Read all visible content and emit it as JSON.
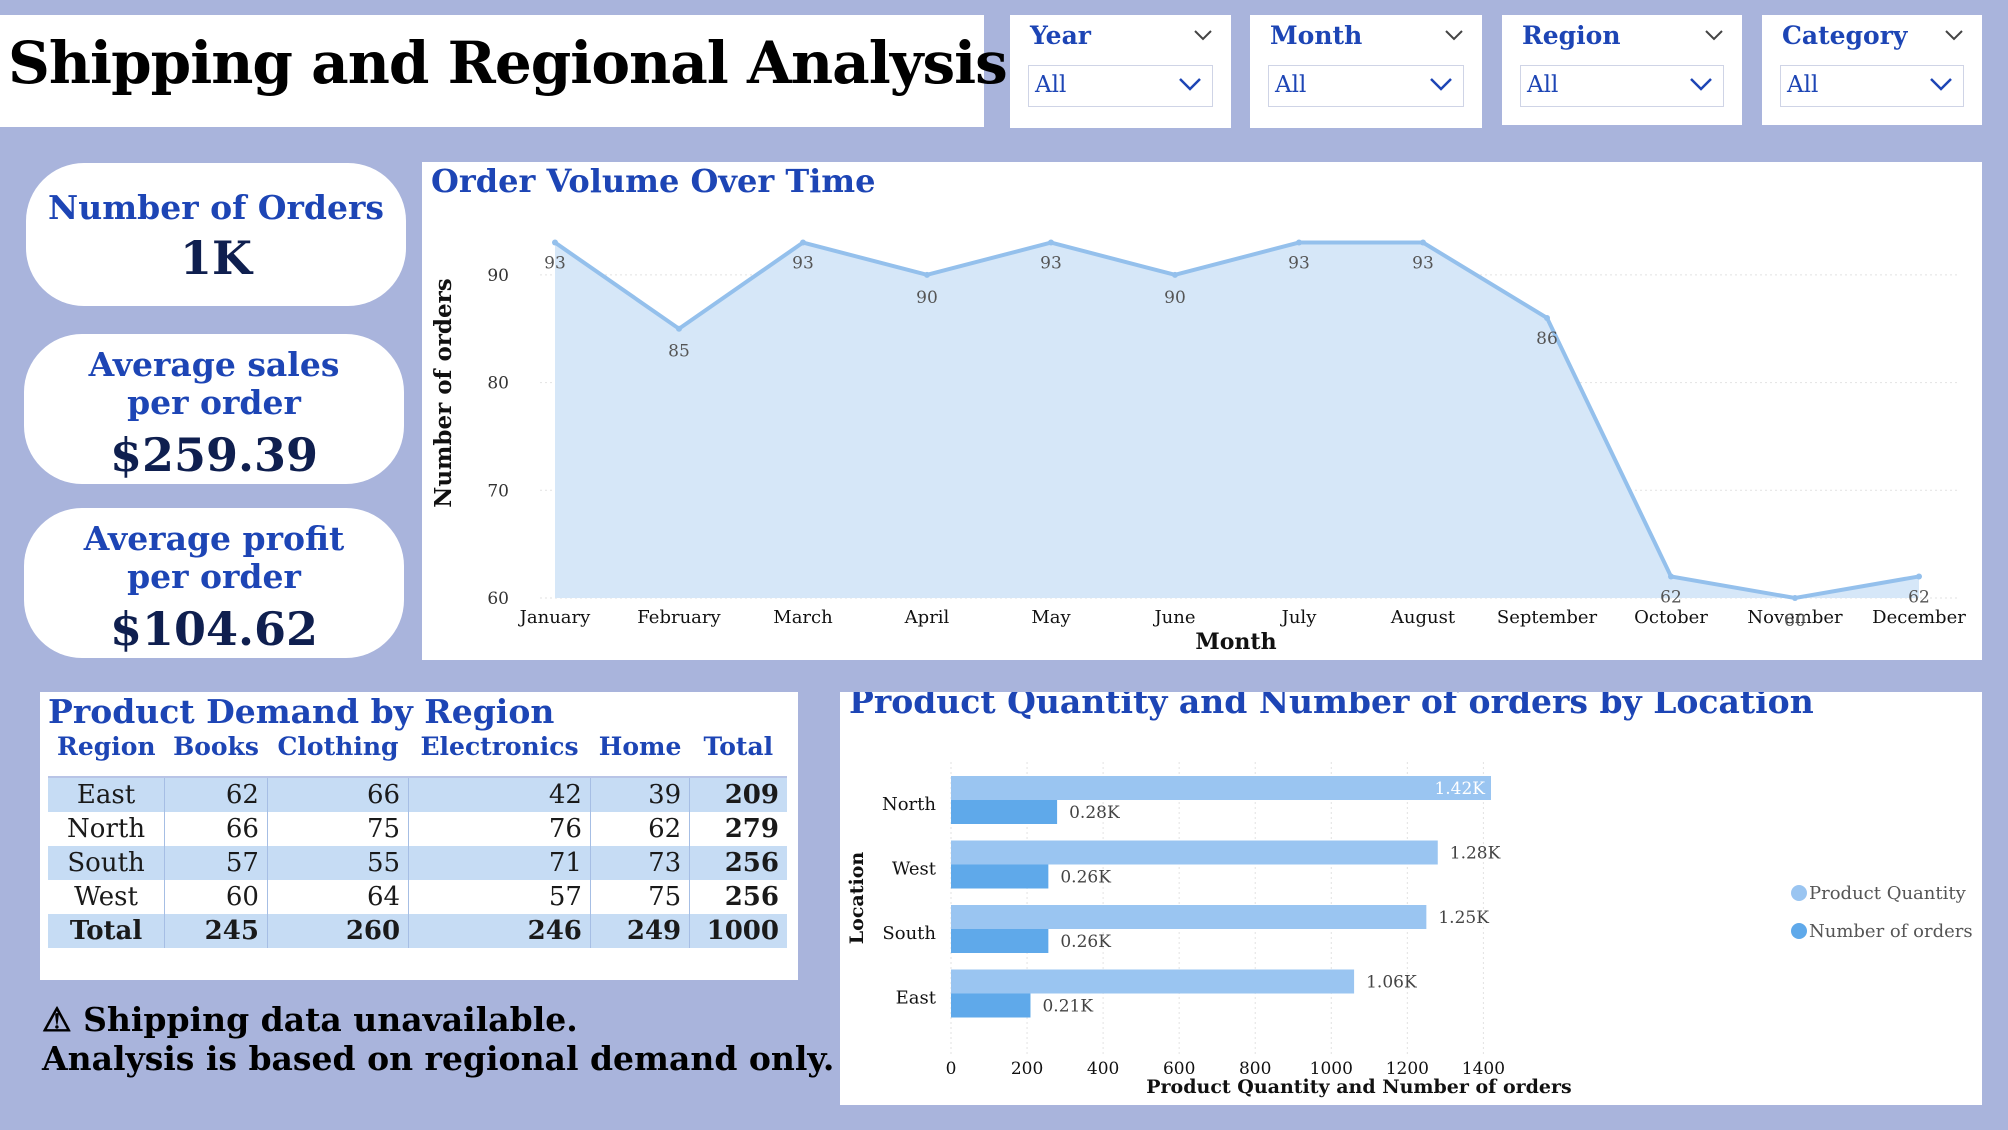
{
  "header": {
    "title": "Shipping and Regional Analysis"
  },
  "slicers": [
    {
      "label": "Year",
      "value": "All"
    },
    {
      "label": "Month",
      "value": "All"
    },
    {
      "label": "Region",
      "value": "All"
    },
    {
      "label": "Category",
      "value": "All"
    }
  ],
  "kpis": {
    "orders": {
      "label": "Number of Orders",
      "value": "1K"
    },
    "avg_sales": {
      "label": "Average sales per order",
      "value": "$259.39"
    },
    "avg_profit": {
      "label": "Average profit per order",
      "value": "$104.62"
    }
  },
  "demand_table": {
    "title": "Product Demand by Region",
    "columns": [
      "Region",
      "Books",
      "Clothing",
      "Electronics",
      "Home",
      "Total"
    ],
    "rows": [
      [
        "East",
        "62",
        "66",
        "42",
        "39",
        "209"
      ],
      [
        "North",
        "66",
        "75",
        "76",
        "62",
        "279"
      ],
      [
        "South",
        "57",
        "55",
        "71",
        "73",
        "256"
      ],
      [
        "West",
        "60",
        "64",
        "57",
        "75",
        "256"
      ]
    ],
    "total_row": [
      "Total",
      "245",
      "260",
      "246",
      "249",
      "1000"
    ]
  },
  "warning": {
    "line1": "⚠ Shipping data unavailable.",
    "line2": "Analysis is based on regional demand only."
  },
  "colors": {
    "accent_blue": "#1d45b5",
    "line_series": "#94c0ec",
    "area_fill": "#d6e7f8",
    "bar_quantity": "#9ac5f1",
    "bar_orders": "#5fa9ea",
    "background": "#a9b4dc"
  },
  "chart_data": [
    {
      "type": "area",
      "title": "Order Volume Over Time",
      "xlabel": "Month",
      "ylabel": "Number of orders",
      "categories": [
        "January",
        "February",
        "March",
        "April",
        "May",
        "June",
        "July",
        "August",
        "September",
        "October",
        "November",
        "December"
      ],
      "values": [
        93,
        85,
        93,
        90,
        93,
        90,
        93,
        93,
        86,
        62,
        60,
        62
      ],
      "ylim": [
        60,
        95
      ],
      "yticks": [
        60,
        70,
        80,
        90
      ],
      "grid": true,
      "legend": "none"
    },
    {
      "type": "bar",
      "orientation": "horizontal",
      "title": "Product Quantity and Number of orders by Location",
      "xlabel": "Product Quantity and Number of orders",
      "ylabel": "Location",
      "categories": [
        "North",
        "West",
        "South",
        "East"
      ],
      "series": [
        {
          "name": "Product Quantity",
          "values": [
            1420,
            1280,
            1250,
            1060
          ],
          "labels": [
            "1.42K",
            "1.28K",
            "1.25K",
            "1.06K"
          ]
        },
        {
          "name": "Number of orders",
          "values": [
            279,
            256,
            256,
            209
          ],
          "labels": [
            "0.28K",
            "0.26K",
            "0.26K",
            "0.21K"
          ]
        }
      ],
      "xlim": [
        0,
        1420
      ],
      "xticks": [
        0,
        200,
        400,
        600,
        800,
        1000,
        1200,
        1400
      ],
      "legend": "right"
    }
  ]
}
